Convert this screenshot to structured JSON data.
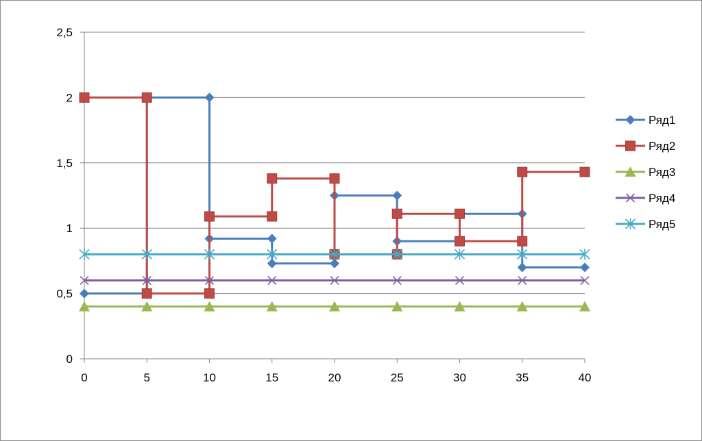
{
  "chart_data": {
    "type": "line",
    "title": "",
    "xlabel": "",
    "ylabel": "",
    "xlim": [
      0,
      40
    ],
    "ylim": [
      0,
      2.5
    ],
    "x_ticks": [
      "0",
      "5",
      "10",
      "15",
      "20",
      "25",
      "30",
      "35",
      "40"
    ],
    "y_ticks": [
      "0",
      "0,5",
      "1",
      "1,5",
      "2",
      "2,5"
    ],
    "grid": "horizontal major gridlines",
    "legend_position": "right",
    "series": [
      {
        "name": "Ряд1",
        "color": "#4a7ebb",
        "marker": "diamond",
        "points": [
          {
            "x": 0,
            "y": 0.5
          },
          {
            "x": 5,
            "y": 0.5
          },
          {
            "x": 5,
            "y": 2
          },
          {
            "x": 10,
            "y": 2
          },
          {
            "x": 10,
            "y": 0.92
          },
          {
            "x": 15,
            "y": 0.92
          },
          {
            "x": 15,
            "y": 0.73
          },
          {
            "x": 20,
            "y": 0.73
          },
          {
            "x": 20,
            "y": 1.25
          },
          {
            "x": 25,
            "y": 1.25
          },
          {
            "x": 25,
            "y": 0.9
          },
          {
            "x": 30,
            "y": 0.9
          },
          {
            "x": 30,
            "y": 1.11
          },
          {
            "x": 35,
            "y": 1.11
          },
          {
            "x": 35,
            "y": 0.7
          },
          {
            "x": 40,
            "y": 0.7
          }
        ]
      },
      {
        "name": "Ряд2",
        "color": "#be4b48",
        "marker": "square",
        "points": [
          {
            "x": 0,
            "y": 2
          },
          {
            "x": 5,
            "y": 2
          },
          {
            "x": 5,
            "y": 0.5
          },
          {
            "x": 10,
            "y": 0.5
          },
          {
            "x": 10,
            "y": 1.09
          },
          {
            "x": 15,
            "y": 1.09
          },
          {
            "x": 15,
            "y": 1.38
          },
          {
            "x": 20,
            "y": 1.38
          },
          {
            "x": 20,
            "y": 0.8
          },
          {
            "x": 25,
            "y": 0.8
          },
          {
            "x": 25,
            "y": 1.11
          },
          {
            "x": 30,
            "y": 1.11
          },
          {
            "x": 30,
            "y": 0.9
          },
          {
            "x": 35,
            "y": 0.9
          },
          {
            "x": 35,
            "y": 1.43
          },
          {
            "x": 40,
            "y": 1.43
          }
        ]
      },
      {
        "name": "Ряд3",
        "color": "#98b954",
        "marker": "triangle",
        "points": [
          {
            "x": 0,
            "y": 0.4
          },
          {
            "x": 5,
            "y": 0.4
          },
          {
            "x": 10,
            "y": 0.4
          },
          {
            "x": 15,
            "y": 0.4
          },
          {
            "x": 20,
            "y": 0.4
          },
          {
            "x": 25,
            "y": 0.4
          },
          {
            "x": 30,
            "y": 0.4
          },
          {
            "x": 35,
            "y": 0.4
          },
          {
            "x": 40,
            "y": 0.4
          }
        ]
      },
      {
        "name": "Ряд4",
        "color": "#7d5fa0",
        "marker": "x",
        "points": [
          {
            "x": 0,
            "y": 0.6
          },
          {
            "x": 5,
            "y": 0.6
          },
          {
            "x": 10,
            "y": 0.6
          },
          {
            "x": 15,
            "y": 0.6
          },
          {
            "x": 20,
            "y": 0.6
          },
          {
            "x": 25,
            "y": 0.6
          },
          {
            "x": 30,
            "y": 0.6
          },
          {
            "x": 35,
            "y": 0.6
          },
          {
            "x": 40,
            "y": 0.6
          }
        ]
      },
      {
        "name": "Ряд5",
        "color": "#46aac5",
        "marker": "star",
        "points": [
          {
            "x": 0,
            "y": 0.8
          },
          {
            "x": 5,
            "y": 0.8
          },
          {
            "x": 10,
            "y": 0.8
          },
          {
            "x": 15,
            "y": 0.8
          },
          {
            "x": 20,
            "y": 0.8
          },
          {
            "x": 25,
            "y": 0.8
          },
          {
            "x": 30,
            "y": 0.8
          },
          {
            "x": 35,
            "y": 0.8
          },
          {
            "x": 40,
            "y": 0.8
          }
        ]
      }
    ]
  }
}
